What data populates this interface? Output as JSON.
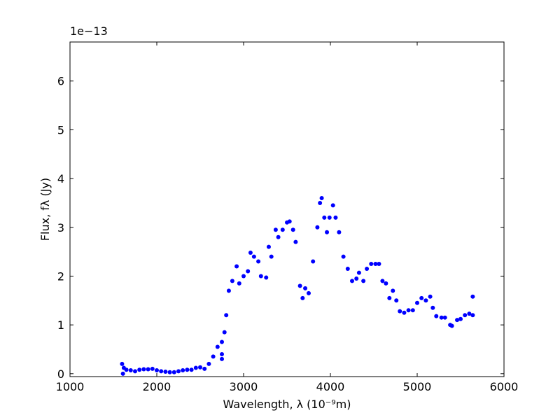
{
  "chart_data": {
    "type": "scatter",
    "x_label": "Wavelength, λ (10⁻⁹m)",
    "y_label": "Flux, fλ (Jy)",
    "y_offset_label": "1e−13",
    "xlim": [
      1000,
      6000
    ],
    "xticks": [
      1000,
      2000,
      3000,
      4000,
      5000,
      6000
    ],
    "ylim": [
      -0.06,
      6.8
    ],
    "yticks": [
      0,
      1,
      2,
      3,
      4,
      5,
      6
    ],
    "color": "#0000ff",
    "x": [
      1600,
      1610,
      1620,
      1650,
      1700,
      1750,
      1800,
      1850,
      1900,
      1950,
      2000,
      2050,
      2100,
      2150,
      2200,
      2250,
      2300,
      2350,
      2400,
      2450,
      2500,
      2550,
      2600,
      2650,
      2700,
      2750,
      2750,
      2750,
      2780,
      2800,
      2830,
      2870,
      2920,
      2950,
      3000,
      3050,
      3080,
      3120,
      3170,
      3200,
      3260,
      3290,
      3320,
      3370,
      3400,
      3450,
      3500,
      3530,
      3570,
      3600,
      3650,
      3680,
      3710,
      3750,
      3800,
      3850,
      3880,
      3900,
      3930,
      3960,
      3990,
      4030,
      4060,
      4100,
      4150,
      4200,
      4250,
      4300,
      4330,
      4380,
      4420,
      4470,
      4520,
      4560,
      4600,
      4640,
      4680,
      4720,
      4760,
      4800,
      4850,
      4900,
      4950,
      5000,
      5050,
      5100,
      5150,
      5180,
      5220,
      5280,
      5320,
      5380,
      5400,
      5460,
      5500,
      5550,
      5600,
      5640,
      5640
    ],
    "values": [
      0.2,
      0.0,
      0.12,
      0.08,
      0.07,
      0.05,
      0.08,
      0.09,
      0.09,
      0.1,
      0.07,
      0.05,
      0.04,
      0.03,
      0.03,
      0.05,
      0.07,
      0.08,
      0.08,
      0.12,
      0.13,
      0.1,
      0.2,
      0.35,
      0.55,
      0.65,
      0.3,
      0.4,
      0.85,
      1.2,
      1.7,
      1.9,
      2.2,
      1.85,
      2.0,
      2.1,
      2.48,
      2.4,
      2.3,
      2.0,
      1.97,
      2.6,
      2.4,
      2.95,
      2.8,
      2.95,
      3.1,
      3.12,
      2.95,
      2.7,
      1.8,
      1.55,
      1.75,
      1.65,
      2.3,
      3.0,
      3.5,
      3.6,
      3.2,
      2.9,
      3.2,
      3.45,
      3.2,
      2.9,
      2.4,
      2.15,
      1.9,
      1.95,
      2.07,
      1.9,
      2.15,
      2.25,
      2.25,
      2.25,
      1.9,
      1.85,
      1.55,
      1.7,
      1.5,
      1.28,
      1.25,
      1.3,
      1.3,
      1.45,
      1.55,
      1.5,
      1.58,
      1.35,
      1.18,
      1.15,
      1.15,
      1.0,
      0.98,
      1.1,
      1.12,
      1.2,
      1.23,
      1.2,
      1.58
    ]
  }
}
